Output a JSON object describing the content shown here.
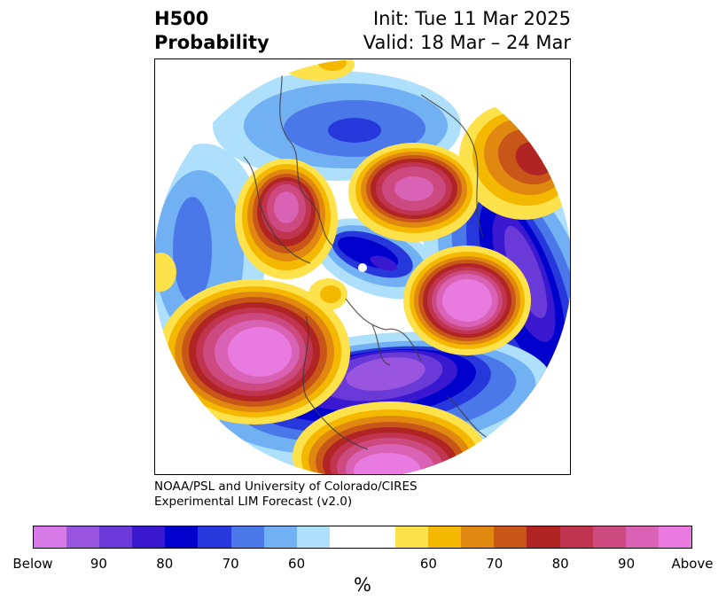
{
  "header": {
    "variable": "H500",
    "product": "Probability",
    "init": "Init: Tue 11 Mar 2025",
    "valid": "Valid: 18 Mar – 24 Mar"
  },
  "credit": {
    "line1": "NOAA/PSL and University of Colorado/CIRES",
    "line2": "Experimental LIM Forecast (v2.0)"
  },
  "colorbar": {
    "unit": "%",
    "ticks": [
      "Below",
      "90",
      "80",
      "70",
      "60",
      "60",
      "70",
      "80",
      "90",
      "Above"
    ],
    "below_colors": [
      "#d67ae8",
      "#9a55e0",
      "#6a3ad8",
      "#3a18d0",
      "#0000cc",
      "#2638dc",
      "#4a78e8",
      "#72b0f4",
      "#aee0fc"
    ],
    "neutral_color": "#ffffff",
    "above_colors": [
      "#fee24c",
      "#f4b800",
      "#e08810",
      "#c85618",
      "#b02424",
      "#c03450",
      "#cc4a80",
      "#da62b4",
      "#e87ae0"
    ]
  }
}
